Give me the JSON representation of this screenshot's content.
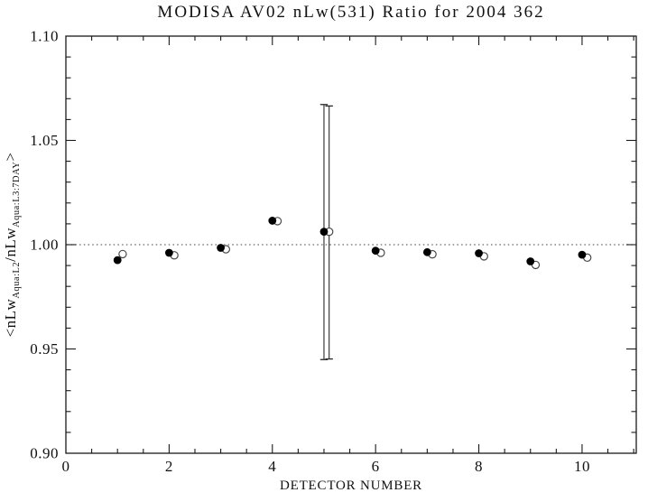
{
  "chart_data": {
    "type": "scatter",
    "title": "MODISA AV02 nLw(531) Ratio for 2004 362",
    "xlabel": "DETECTOR NUMBER",
    "ylabel": "<nLw Aqua:L2 /nLw Aqua:L3:7DAY >",
    "ylabel_parts": [
      {
        "text": "<nLw"
      },
      {
        "text": "Aqua:L2",
        "sub": true
      },
      {
        "text": "/nLw"
      },
      {
        "text": "Aqua:L3:7DAY",
        "sub": true
      },
      {
        "text": ">"
      }
    ],
    "xlim": [
      0,
      11.05
    ],
    "ylim": [
      0.9,
      1.1
    ],
    "x_ticks": [
      {
        "v": 0,
        "label": "0"
      },
      {
        "v": 2,
        "label": "2"
      },
      {
        "v": 4,
        "label": "4"
      },
      {
        "v": 6,
        "label": "6"
      },
      {
        "v": 8,
        "label": "8"
      },
      {
        "v": 10,
        "label": "10"
      }
    ],
    "x_minor_step": 0.5,
    "y_ticks": [
      {
        "v": 0.9,
        "label": "0.90"
      },
      {
        "v": 0.95,
        "label": "0.95"
      },
      {
        "v": 1.0,
        "label": "1.00"
      },
      {
        "v": 1.05,
        "label": "1.05"
      },
      {
        "v": 1.1,
        "label": "1.10"
      }
    ],
    "y_minor_step": 0.01,
    "reference_line": {
      "y": 1.0,
      "style": "dotted",
      "color": "#666666"
    },
    "x_values": [
      1,
      2,
      3,
      4,
      5,
      6,
      7,
      8,
      9,
      10
    ],
    "series": [
      {
        "name": "open-circle",
        "symbol": "open-circle",
        "x_offset": 0.1,
        "values": [
          0.9955,
          0.9949,
          0.9978,
          1.0113,
          1.0062,
          0.9961,
          0.9954,
          0.9944,
          0.9903,
          0.9938
        ],
        "error_bars": [
          {
            "x": 5,
            "low": 0.9452,
            "high": 1.0665
          }
        ]
      },
      {
        "name": "filled-circle",
        "symbol": "filled-circle",
        "x_offset": 0,
        "values": [
          0.9926,
          0.9961,
          0.9985,
          1.0115,
          1.0062,
          0.9971,
          0.9964,
          0.9959,
          0.992,
          0.9952
        ],
        "error_bars": [
          {
            "x": 5,
            "low": 0.9449,
            "high": 1.0672
          }
        ]
      }
    ],
    "axis_color": "#1a1a1a",
    "grid": false,
    "legend": "none"
  }
}
